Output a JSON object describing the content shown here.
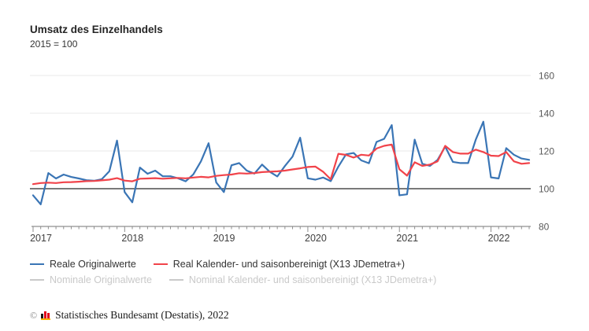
{
  "header": {
    "title": "Umsatz des Einzelhandels",
    "subtitle": "2015 = 100"
  },
  "chart_data": {
    "type": "line",
    "title": "Umsatz des Einzelhandels",
    "subtitle": "2015 = 100",
    "grid": "horizontal",
    "legend_position": "bottom",
    "y_axis": {
      "side": "right",
      "ylim": [
        80,
        160
      ],
      "ticks": [
        160,
        140,
        120,
        100,
        80
      ],
      "emphasized_line": 100,
      "baseline": 80
    },
    "x_axis": {
      "tick_unit": "month",
      "label_unit": "year",
      "year_labels": [
        "2017",
        "2018",
        "2019",
        "2020",
        "2021",
        "2022"
      ]
    },
    "categories": [
      "2017-01",
      "2017-02",
      "2017-03",
      "2017-04",
      "2017-05",
      "2017-06",
      "2017-07",
      "2017-08",
      "2017-09",
      "2017-10",
      "2017-11",
      "2017-12",
      "2018-01",
      "2018-02",
      "2018-03",
      "2018-04",
      "2018-05",
      "2018-06",
      "2018-07",
      "2018-08",
      "2018-09",
      "2018-10",
      "2018-11",
      "2018-12",
      "2019-01",
      "2019-02",
      "2019-03",
      "2019-04",
      "2019-05",
      "2019-06",
      "2019-07",
      "2019-08",
      "2019-09",
      "2019-10",
      "2019-11",
      "2019-12",
      "2020-01",
      "2020-02",
      "2020-03",
      "2020-04",
      "2020-05",
      "2020-06",
      "2020-07",
      "2020-08",
      "2020-09",
      "2020-10",
      "2020-11",
      "2020-12",
      "2021-01",
      "2021-02",
      "2021-03",
      "2021-04",
      "2021-05",
      "2021-06",
      "2021-07",
      "2021-08",
      "2021-09",
      "2021-10",
      "2021-11",
      "2021-12",
      "2022-01",
      "2022-02",
      "2022-03",
      "2022-04",
      "2022-05",
      "2022-06"
    ],
    "series": [
      {
        "name": "Reale Originalwerte",
        "color": "#3a75b5",
        "enabled": true,
        "values": [
          96.5,
          91.7,
          108.3,
          105.4,
          107.5,
          106.2,
          105.4,
          104.5,
          104.2,
          105.0,
          109.3,
          125.5,
          98.2,
          92.8,
          111.2,
          107.9,
          109.6,
          106.6,
          106.6,
          105.5,
          103.9,
          107.6,
          114.5,
          124.1,
          103.3,
          98.2,
          112.4,
          113.6,
          109.6,
          108.0,
          112.8,
          109.0,
          106.5,
          112.0,
          117.0,
          127.0,
          105.5,
          104.8,
          105.9,
          104.0,
          111.7,
          118.2,
          118.9,
          115.0,
          113.5,
          124.8,
          126.4,
          133.7,
          96.5,
          97.0,
          126.0,
          113.2,
          112.1,
          115.3,
          122.3,
          114.2,
          113.6,
          113.6,
          126.0,
          135.5,
          106.0,
          105.4,
          121.5,
          118.0,
          116.0,
          115.3
        ]
      },
      {
        "name": "Real Kalender- und saisonbereinigt (X13 JDemetra+)",
        "color": "#f1434a",
        "enabled": true,
        "values": [
          102.4,
          103.0,
          103.2,
          103.0,
          103.4,
          103.5,
          103.7,
          104.0,
          104.1,
          104.4,
          104.8,
          105.6,
          104.3,
          103.9,
          105.3,
          105.4,
          105.6,
          105.3,
          105.5,
          105.7,
          105.5,
          105.9,
          106.3,
          106.0,
          106.8,
          107.2,
          107.5,
          108.2,
          108.0,
          108.3,
          108.8,
          109.0,
          109.2,
          109.6,
          110.2,
          110.8,
          111.5,
          111.7,
          109.0,
          105.0,
          118.5,
          117.9,
          116.5,
          118.0,
          117.6,
          121.3,
          122.7,
          123.4,
          110.3,
          106.9,
          114.0,
          112.1,
          112.8,
          114.5,
          122.7,
          119.4,
          118.6,
          118.6,
          120.7,
          119.4,
          117.5,
          117.3,
          119.4,
          114.5,
          113.2,
          113.6
        ]
      },
      {
        "name": "Nominale Originalwerte",
        "color": "#c9c9c9",
        "enabled": false,
        "values": []
      },
      {
        "name": "Nominal Kalender- und saisonbereinigt (X13 JDemetra+)",
        "color": "#c9c9c9",
        "enabled": false,
        "values": []
      }
    ]
  },
  "legend": {
    "items": [
      {
        "label": "Reale Originalwerte",
        "color": "#3a75b5",
        "enabled": true
      },
      {
        "label": "Real Kalender- und saisonbereinigt (X13 JDemetra+)",
        "color": "#f1434a",
        "enabled": true
      },
      {
        "label": "Nominale Originalwerte",
        "color": "#c9c9c9",
        "enabled": false
      },
      {
        "label": "Nominal Kalender- und saisonbereinigt (X13 JDemetra+)",
        "color": "#c9c9c9",
        "enabled": false
      }
    ]
  },
  "footer": {
    "copyright": "©",
    "text": "Statistisches Bundesamt (Destatis), 2022"
  },
  "style": {
    "grid_color": "#e8e8e8",
    "zero_line_color": "#4d4d4d",
    "axis_color": "#8f8f8f",
    "tick_label_color": "#595959",
    "year_label_color": "#3f3f3f"
  }
}
